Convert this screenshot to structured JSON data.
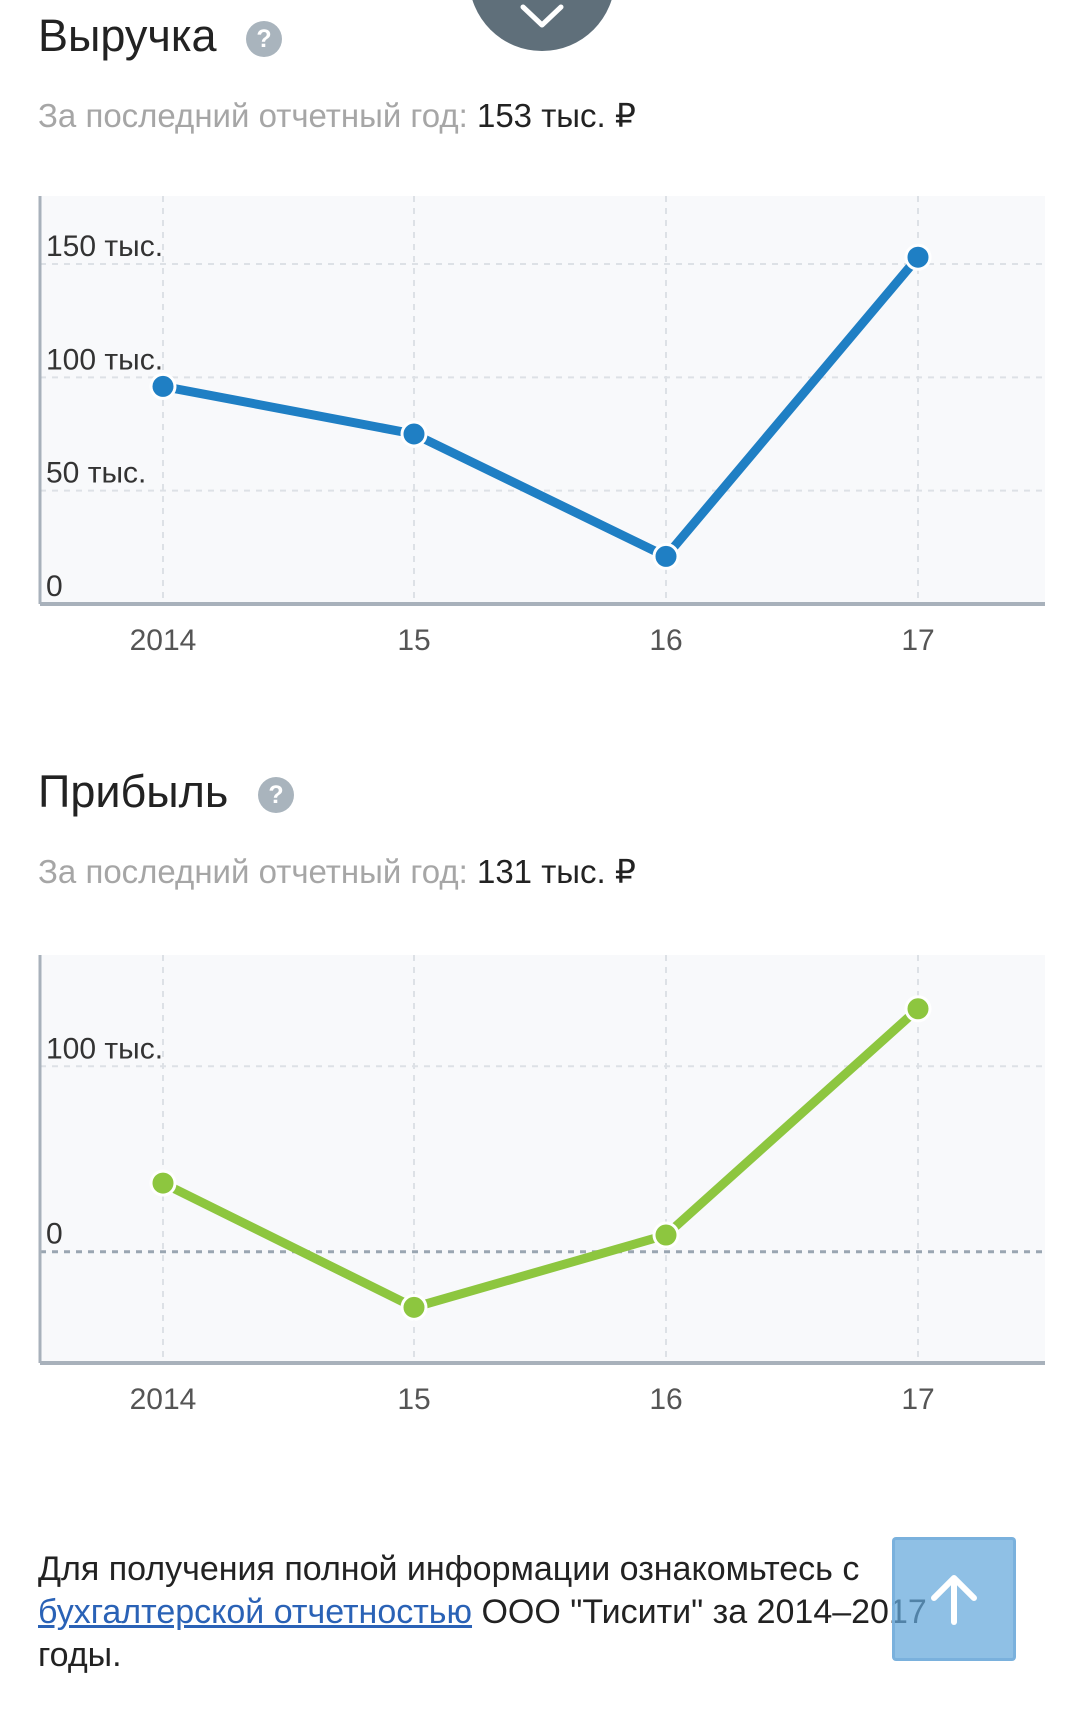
{
  "revenue": {
    "title": "Выручка",
    "subtitle_label": "За последний отчетный год:",
    "subtitle_value": "153 тыс. ₽",
    "help_icon": "question-icon"
  },
  "profit": {
    "title": "Прибыль",
    "subtitle_label": "За последний отчетный год:",
    "subtitle_value": "131 тыс. ₽",
    "help_icon": "question-icon"
  },
  "chart_data": [
    {
      "type": "line",
      "categories": [
        "2014",
        "15",
        "16",
        "17"
      ],
      "series": [
        {
          "values": [
            96,
            75,
            21,
            153
          ],
          "color": "#1f7fc4"
        }
      ],
      "yticks": [
        {
          "value": 0,
          "label": "0"
        },
        {
          "value": 50,
          "label": "50 тыс."
        },
        {
          "value": 100,
          "label": "100 тыс."
        },
        {
          "value": 150,
          "label": "150 тыс."
        }
      ],
      "ylim": [
        0,
        180
      ],
      "grid": true
    },
    {
      "type": "line",
      "categories": [
        "2014",
        "15",
        "16",
        "17"
      ],
      "series": [
        {
          "values": [
            37,
            -30,
            9,
            131
          ],
          "color": "#8dc63f"
        }
      ],
      "yticks": [
        {
          "value": 0,
          "label": "0"
        },
        {
          "value": 100,
          "label": "100 тыс."
        }
      ],
      "ylim": [
        -60,
        160
      ],
      "grid": true
    }
  ],
  "footer": {
    "text_before": "Для получения полной информации ознакомьтесь с ",
    "link": "бухгалтерской отчетностью",
    "text_after": " ООО \"Тисити\" за 2014–2017 годы."
  },
  "colors": {
    "revenue_line": "#1f7fc4",
    "profit_line": "#8dc63f",
    "link": "#2a62b6"
  }
}
